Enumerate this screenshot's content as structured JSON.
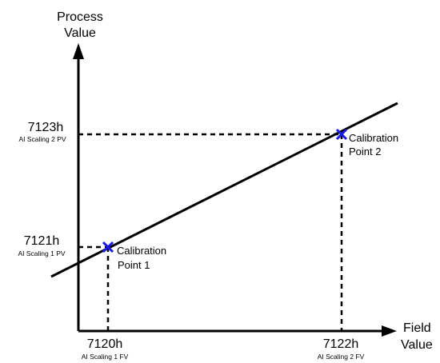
{
  "axes": {
    "y_title_line1": "Process",
    "y_title_line2": "Value",
    "x_title_line1": "Field",
    "x_title_line2": "Value"
  },
  "y_ticks": [
    {
      "value": "7123h",
      "sub": "AI Scaling 2 PV"
    },
    {
      "value": "7121h",
      "sub": "AI Scaling 1 PV"
    }
  ],
  "x_ticks": [
    {
      "value": "7120h",
      "sub": "AI Scaling 1 FV"
    },
    {
      "value": "7122h",
      "sub": "AI Scaling 2 FV"
    }
  ],
  "points": [
    {
      "line1": "Calibration",
      "line2": "Point 1"
    },
    {
      "line1": "Calibration",
      "line2": "Point 2"
    }
  ],
  "colors": {
    "marker": "#1a1ae6",
    "line": "#000000"
  }
}
